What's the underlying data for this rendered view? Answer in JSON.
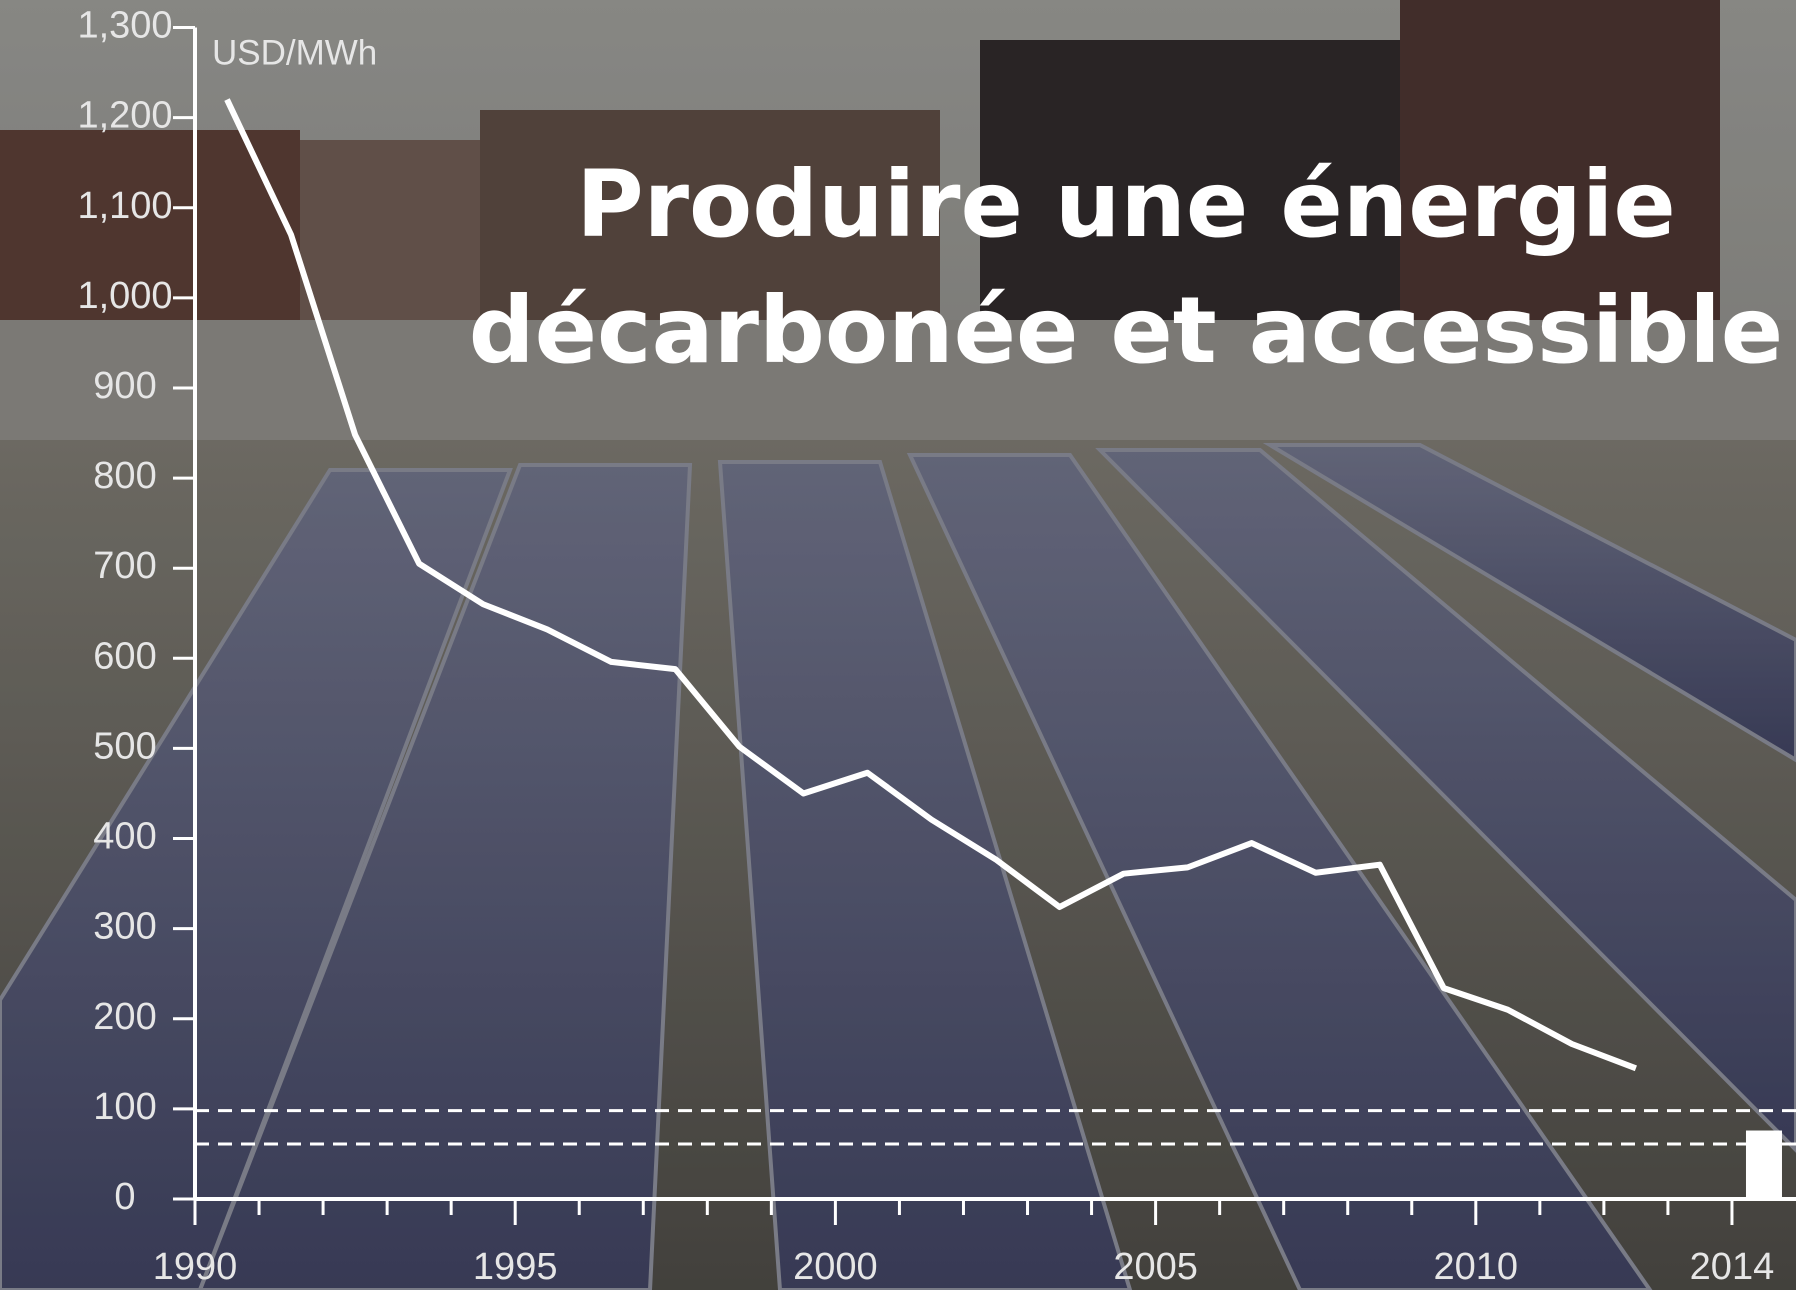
{
  "chart_data": {
    "type": "line",
    "title": [
      "Produire une énergie",
      "décarbonée et accessible"
    ],
    "y_unit_label": "USD/MWh",
    "x": [
      1990.5,
      1991.5,
      1992.5,
      1993.5,
      1994.5,
      1995.5,
      1996.5,
      1997.5,
      1998.5,
      1999.5,
      2000.5,
      2001.5,
      2002.5,
      2003.5,
      2004.5,
      2005.5,
      2006.5,
      2007.5,
      2008.5,
      2009.5,
      2010.5,
      2011.5,
      2012.5
    ],
    "series": [
      {
        "color": "#ffffff",
        "values": [
          1220,
          1070,
          848,
          705,
          660,
          632,
          596,
          588,
          502,
          450,
          473,
          421,
          377,
          324,
          361,
          368,
          395,
          362,
          371,
          234,
          210,
          172,
          145
        ]
      }
    ],
    "reference_lines": [
      98,
      61
    ],
    "bars": {
      "x": [
        2014.5
      ],
      "values": [
        76
      ],
      "color": "#ffffff"
    },
    "xlim": [
      1990,
      2015
    ],
    "xticks": [
      1990,
      1995,
      2000,
      2005,
      2010,
      2014
    ],
    "xminor_ticks": [
      1991,
      1992,
      1993,
      1994,
      1996,
      1997,
      1998,
      1999,
      2001,
      2002,
      2003,
      2004,
      2006,
      2007,
      2008,
      2009,
      2011,
      2012,
      2013
    ],
    "ylim": [
      0,
      1300
    ],
    "yticks": [
      0,
      100,
      200,
      300,
      400,
      500,
      600,
      700,
      800,
      900,
      {
        "value": 1000,
        "label": "1,000"
      },
      {
        "value": 1100,
        "label": "1,100"
      },
      {
        "value": 1200,
        "label": "1,200"
      },
      {
        "value": 1300,
        "label": "1,300"
      }
    ]
  }
}
